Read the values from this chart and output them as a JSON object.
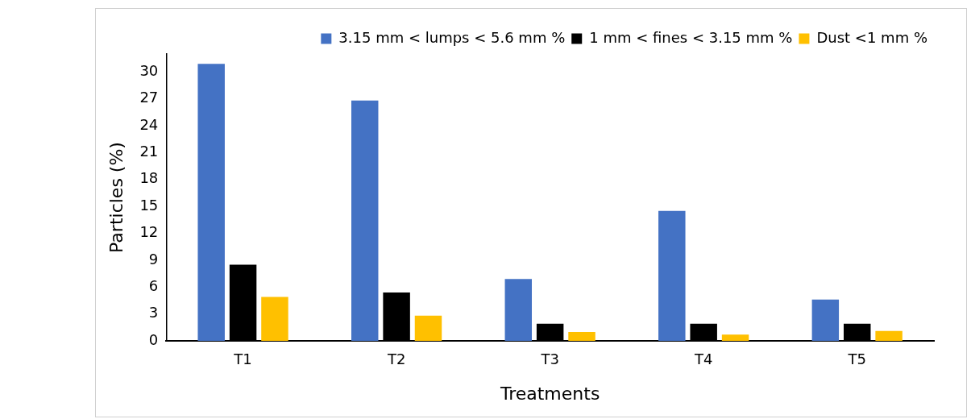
{
  "chart_data": {
    "type": "bar",
    "xlabel": "Treatments",
    "ylabel": "Particles (%)",
    "categories": [
      "T1",
      "T2",
      "T3",
      "T4",
      "T5"
    ],
    "series": [
      {
        "name": "3.15 mm < lumps < 5.6 mm %",
        "color": "#4472c4",
        "values": [
          30.9,
          26.8,
          6.9,
          14.5,
          4.6
        ]
      },
      {
        "name": "1 mm < fines < 3.15 mm %",
        "color": "#000000",
        "values": [
          8.5,
          5.4,
          1.9,
          1.9,
          1.9
        ]
      },
      {
        "name": "Dust <1 mm %",
        "color": "#ffc000",
        "values": [
          4.9,
          2.8,
          1.0,
          0.7,
          1.1
        ]
      }
    ],
    "ylim": [
      0,
      32
    ],
    "yticks": [
      0,
      3,
      6,
      9,
      12,
      15,
      18,
      21,
      24,
      27,
      30
    ],
    "grid": false,
    "legend": "top right"
  }
}
